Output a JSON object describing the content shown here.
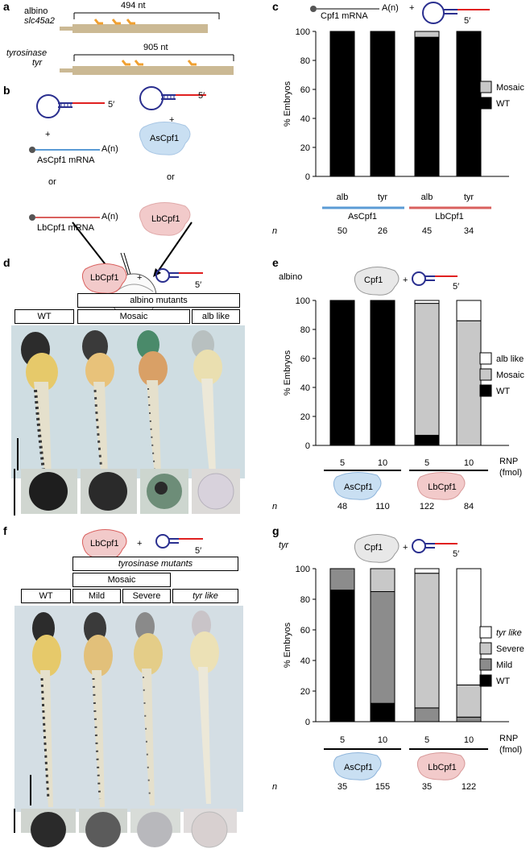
{
  "panel_a": {
    "label": "a",
    "gene1_name": "albino",
    "gene1_symbol": "slc45a2",
    "gene1_length": "494 nt",
    "gene2_name": "tyrosinase",
    "gene2_symbol": "tyr",
    "gene2_length": "905 nt"
  },
  "panel_b": {
    "label": "b",
    "guide_5prime": "5′",
    "plus": "+",
    "polyA": "A(n)",
    "as_mrna": "AsCpf1 mRNA",
    "lb_mrna": "LbCpf1 mRNA",
    "or": "or",
    "as_protein": "AsCpf1",
    "lb_protein": "LbCpf1"
  },
  "panel_c": {
    "label": "c",
    "header_mrna": "Cpf1 mRNA",
    "header_polyA": "A(n)",
    "header_plus": "+",
    "header_5prime": "5′",
    "ylabel": "% Embryos",
    "yticks": [
      "0",
      "20",
      "40",
      "60",
      "80",
      "100"
    ],
    "categories": [
      "alb",
      "tyr",
      "alb",
      "tyr"
    ],
    "group_labels": [
      "AsCpf1",
      "LbCpf1"
    ],
    "n_label": "n",
    "n_values": [
      "50",
      "26",
      "45",
      "34"
    ],
    "legend": [
      "Mosaic",
      "WT"
    ]
  },
  "panel_d": {
    "label": "d",
    "protein": "LbCpf1",
    "plus": "+",
    "guide_5prime": "5′",
    "header": "albino mutants",
    "col_labels": [
      "WT",
      "Mosaic",
      "alb like"
    ]
  },
  "panel_e": {
    "label": "e",
    "gene": "albino",
    "protein": "Cpf1",
    "plus": "+",
    "guide_5prime": "5′",
    "ylabel": "% Embryos",
    "yticks": [
      "0",
      "20",
      "40",
      "60",
      "80",
      "100"
    ],
    "rnp_values": [
      "5",
      "10",
      "5",
      "10"
    ],
    "rnp_label": "RNP",
    "rnp_unit": "(fmol)",
    "group_labels": [
      "AsCpf1",
      "LbCpf1"
    ],
    "n_label": "n",
    "n_values": [
      "48",
      "110",
      "122",
      "84"
    ],
    "legend": [
      "alb like",
      "Mosaic",
      "WT"
    ]
  },
  "panel_f": {
    "label": "f",
    "protein": "LbCpf1",
    "plus": "+",
    "guide_5prime": "5′",
    "header": "tyrosinase mutants",
    "subheader": "Mosaic",
    "col_labels": [
      "WT",
      "Mild",
      "Severe",
      "tyr like"
    ]
  },
  "panel_g": {
    "label": "g",
    "gene": "tyr",
    "protein": "Cpf1",
    "plus": "+",
    "guide_5prime": "5′",
    "ylabel": "% Embryos",
    "yticks": [
      "0",
      "20",
      "40",
      "60",
      "80",
      "100"
    ],
    "rnp_values": [
      "5",
      "10",
      "5",
      "10"
    ],
    "rnp_label": "RNP",
    "rnp_unit": "(fmol)",
    "group_labels": [
      "AsCpf1",
      "LbCpf1"
    ],
    "n_label": "n",
    "n_values": [
      "35",
      "155",
      "35",
      "122"
    ],
    "legend": [
      "tyr like",
      "Severe",
      "Mild",
      "WT"
    ]
  },
  "colors": {
    "as_blue": "#5b9bd5",
    "lb_red": "#d9605e",
    "as_fill": "#c9dff2",
    "lb_fill": "#f2caca",
    "exon": "#cbb994",
    "target": "#f0a030",
    "guide_loop": "#2a2f8f",
    "guide_tail": "#e02020"
  },
  "chart_data": [
    {
      "type": "bar",
      "panel": "c",
      "stacked": true,
      "categories": [
        "alb",
        "tyr",
        "alb",
        "tyr"
      ],
      "groups": [
        "AsCpf1",
        "AsCpf1",
        "LbCpf1",
        "LbCpf1"
      ],
      "ylabel": "% Embryos",
      "ylim": [
        0,
        100
      ],
      "series": [
        {
          "name": "WT",
          "color": "#000000",
          "values": [
            100,
            100,
            96,
            100
          ]
        },
        {
          "name": "Mosaic",
          "color": "#c8c8c8",
          "values": [
            0,
            0,
            4,
            0
          ]
        }
      ]
    },
    {
      "type": "bar",
      "panel": "e",
      "stacked": true,
      "categories": [
        "5",
        "10",
        "5",
        "10"
      ],
      "groups": [
        "AsCpf1",
        "AsCpf1",
        "LbCpf1",
        "LbCpf1"
      ],
      "ylabel": "% Embryos",
      "ylim": [
        0,
        100
      ],
      "series": [
        {
          "name": "WT",
          "color": "#000000",
          "values": [
            100,
            100,
            7,
            0
          ]
        },
        {
          "name": "Mosaic",
          "color": "#c8c8c8",
          "values": [
            0,
            0,
            91,
            86
          ]
        },
        {
          "name": "alb like",
          "color": "#ffffff",
          "values": [
            0,
            0,
            2,
            14
          ]
        }
      ]
    },
    {
      "type": "bar",
      "panel": "g",
      "stacked": true,
      "categories": [
        "5",
        "10",
        "5",
        "10"
      ],
      "groups": [
        "AsCpf1",
        "AsCpf1",
        "LbCpf1",
        "LbCpf1"
      ],
      "ylabel": "% Embryos",
      "ylim": [
        0,
        100
      ],
      "series": [
        {
          "name": "WT",
          "color": "#000000",
          "values": [
            86,
            12,
            0,
            0
          ]
        },
        {
          "name": "Mild",
          "color": "#8c8c8c",
          "values": [
            14,
            73,
            9,
            3
          ]
        },
        {
          "name": "Severe",
          "color": "#c8c8c8",
          "values": [
            0,
            15,
            88,
            21
          ]
        },
        {
          "name": "tyr like",
          "color": "#ffffff",
          "values": [
            0,
            0,
            3,
            76
          ]
        }
      ]
    }
  ]
}
